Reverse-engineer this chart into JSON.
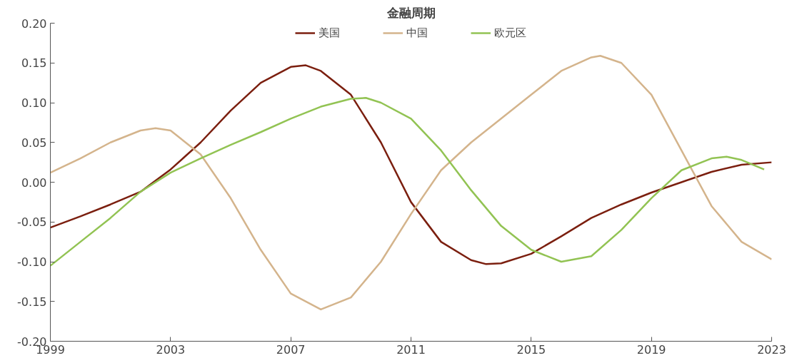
{
  "chart_data": {
    "type": "line",
    "title": "金融周期",
    "legend": "top",
    "grid": false,
    "line_style": "solid",
    "marker": "none",
    "xlim": [
      1999,
      2023
    ],
    "xticks": [
      1999,
      2003,
      2007,
      2011,
      2015,
      2019,
      2023
    ],
    "ylim": [
      -0.2,
      0.2
    ],
    "yticks": [
      {
        "value": -0.2,
        "label": "-0.20"
      },
      {
        "value": -0.15,
        "label": "-0.15"
      },
      {
        "value": -0.1,
        "label": "-0.10"
      },
      {
        "value": -0.05,
        "label": "-0.05"
      },
      {
        "value": 0,
        "label": "0.00"
      },
      {
        "value": 0.05,
        "label": "0.05"
      },
      {
        "value": 0.1,
        "label": "0.10"
      },
      {
        "value": 0.15,
        "label": "0.15"
      },
      {
        "value": 0.2,
        "label": "0.20"
      }
    ],
    "series": [
      {
        "name": "美国",
        "color": "#7b1f0f",
        "x": [
          1999,
          2000,
          2001,
          2002,
          2003,
          2004,
          2005,
          2006,
          2007,
          2007.5,
          2008,
          2009,
          2010,
          2011,
          2012,
          2013,
          2013.5,
          2014,
          2015,
          2016,
          2017,
          2018,
          2019,
          2020,
          2021,
          2022,
          2023
        ],
        "values": [
          -0.057,
          -0.043,
          -0.028,
          -0.012,
          0.016,
          0.05,
          0.09,
          0.125,
          0.145,
          0.147,
          0.14,
          0.11,
          0.05,
          -0.025,
          -0.075,
          -0.098,
          -0.103,
          -0.102,
          -0.09,
          -0.068,
          -0.045,
          -0.028,
          -0.013,
          0.0,
          0.013,
          0.022,
          0.025
        ]
      },
      {
        "name": "中国",
        "color": "#d4b48c",
        "x": [
          1999,
          2000,
          2001,
          2002,
          2002.5,
          2003,
          2004,
          2005,
          2006,
          2007,
          2008,
          2009,
          2010,
          2011,
          2012,
          2013,
          2014,
          2015,
          2016,
          2017,
          2017.3,
          2018,
          2019,
          2020,
          2021,
          2022,
          2023
        ],
        "values": [
          0.012,
          0.03,
          0.05,
          0.065,
          0.068,
          0.065,
          0.035,
          -0.02,
          -0.085,
          -0.14,
          -0.16,
          -0.145,
          -0.1,
          -0.04,
          0.015,
          0.05,
          0.08,
          0.11,
          0.14,
          0.157,
          0.159,
          0.15,
          0.11,
          0.04,
          -0.03,
          -0.075,
          -0.097
        ]
      },
      {
        "name": "欧元区",
        "color": "#92c353",
        "x": [
          1999,
          2000,
          2001,
          2002,
          2003,
          2004,
          2005,
          2006,
          2007,
          2008,
          2009,
          2009.5,
          2010,
          2011,
          2012,
          2013,
          2014,
          2015,
          2016,
          2017,
          2018,
          2019,
          2020,
          2021,
          2021.5,
          2022,
          2022.75
        ],
        "values": [
          -0.105,
          -0.075,
          -0.045,
          -0.012,
          0.012,
          0.03,
          0.047,
          0.063,
          0.08,
          0.095,
          0.105,
          0.106,
          0.1,
          0.08,
          0.04,
          -0.01,
          -0.055,
          -0.085,
          -0.1,
          -0.093,
          -0.06,
          -0.02,
          0.015,
          0.03,
          0.032,
          0.028,
          0.016
        ]
      }
    ]
  }
}
